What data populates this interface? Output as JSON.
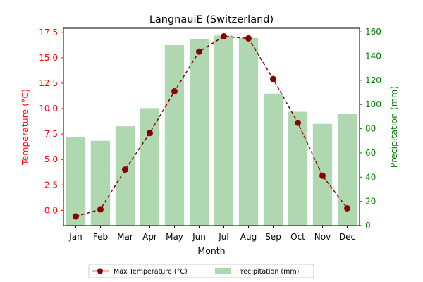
{
  "chart_data": {
    "type": "bar+line",
    "title": "LangnauiE (Switzerland)",
    "xlabel": "Month",
    "categories": [
      "Jan",
      "Feb",
      "Mar",
      "Apr",
      "May",
      "Jun",
      "Jul",
      "Aug",
      "Sep",
      "Oct",
      "Nov",
      "Dec"
    ],
    "left_axis": {
      "label": "Temperature (°C)",
      "color": "#ff0000",
      "ylim": [
        -1.5,
        17.9
      ],
      "ticks": [
        0.0,
        2.5,
        5.0,
        7.5,
        10.0,
        12.5,
        15.0,
        17.5
      ],
      "tick_labels": [
        "0.0",
        "2.5",
        "5.0",
        "7.5",
        "10.0",
        "12.5",
        "15.0",
        "17.5"
      ]
    },
    "right_axis": {
      "label": "Precipitation (mm)",
      "color": "#008000",
      "ylim": [
        0,
        163
      ],
      "ticks": [
        0,
        20,
        40,
        60,
        80,
        100,
        120,
        140,
        160
      ],
      "tick_labels": [
        "0",
        "20",
        "40",
        "60",
        "80",
        "100",
        "120",
        "140",
        "160"
      ]
    },
    "series": [
      {
        "name": "Max Temperature (°C)",
        "kind": "line",
        "axis": "left",
        "color": "#8b0000",
        "values": [
          -0.6,
          0.1,
          4.0,
          7.6,
          11.7,
          15.6,
          17.1,
          16.9,
          12.9,
          8.6,
          3.4,
          0.2
        ]
      },
      {
        "name": "Precipitation (mm)",
        "kind": "bar",
        "axis": "right",
        "color": "#b0d8b0",
        "values": [
          73,
          70,
          82,
          97,
          149,
          154,
          157,
          155,
          109,
          94,
          84,
          92
        ]
      }
    ],
    "legend": {
      "placement": "bottom-center",
      "columns": 2
    },
    "grid": false
  }
}
